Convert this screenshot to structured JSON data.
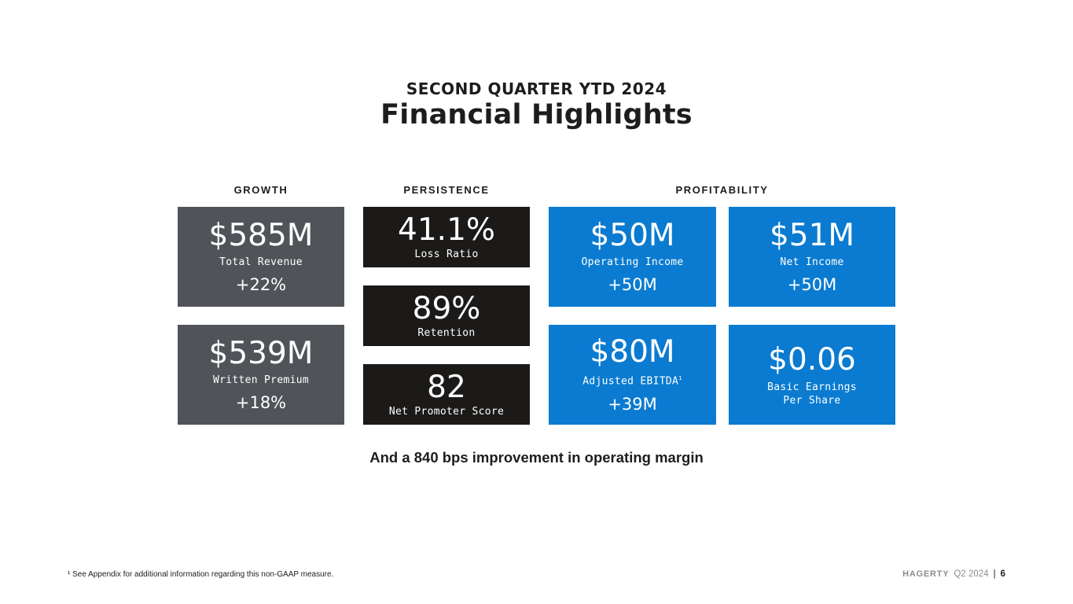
{
  "header": {
    "subtitle": "SECOND QUARTER YTD 2024",
    "title": "Financial Highlights"
  },
  "sections": {
    "growth": "GROWTH",
    "persistence": "PERSISTENCE",
    "profitability": "PROFITABILITY"
  },
  "growth": [
    {
      "value": "$585M",
      "label": "Total Revenue",
      "change": "+22%"
    },
    {
      "value": "$539M",
      "label": "Written Premium",
      "change": "+18%"
    }
  ],
  "persistence": [
    {
      "value": "41.1%",
      "label": "Loss Ratio"
    },
    {
      "value": "89%",
      "label": "Retention"
    },
    {
      "value": "82",
      "label": "Net Promoter Score"
    }
  ],
  "profitability": [
    {
      "value": "$50M",
      "label": "Operating Income",
      "change": "+50M"
    },
    {
      "value": "$51M",
      "label": "Net Income",
      "change": "+50M"
    },
    {
      "value": "$80M",
      "label": "Adjusted EBITDA",
      "label_sup": "1",
      "change": "+39M"
    },
    {
      "value": "$0.06",
      "label_line1": "Basic Earnings",
      "label_line2": "Per Share"
    }
  ],
  "tagline": "And a 840 bps improvement in operating margin",
  "footnote": "¹ See Appendix for additional information regarding this non-GAAP measure.",
  "footer": {
    "brand": "HAGERTY",
    "period": "Q2 2024",
    "separator": "|",
    "page_number": "6"
  },
  "colors": {
    "growth_card": "#505459",
    "persistence_card": "#1b1a19",
    "profitability_card": "#0a7bd0"
  }
}
